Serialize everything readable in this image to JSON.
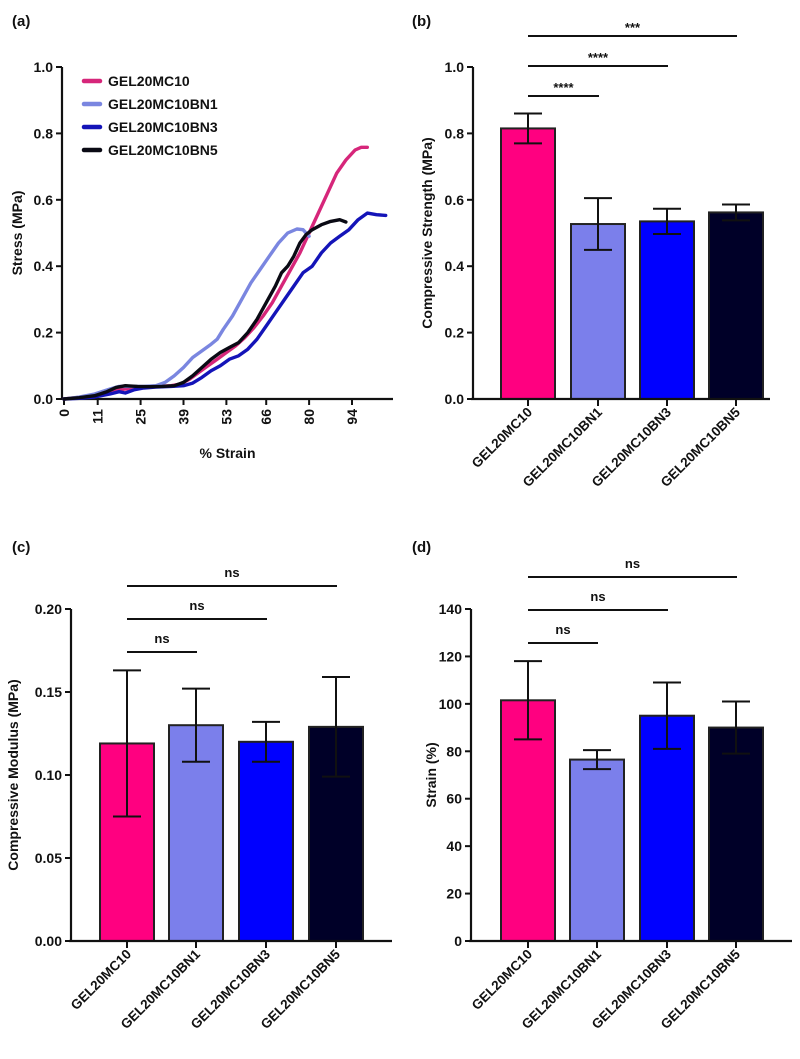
{
  "figure": {
    "panel_labels": [
      "(a)",
      "(b)",
      "(c)",
      "(d)"
    ]
  },
  "chart_data": [
    {
      "id": "a",
      "type": "line",
      "title": "",
      "panel_label": "(a)",
      "xlabel": "% Strain",
      "ylabel": "Stress (MPa)",
      "xlim": [
        0,
        108
      ],
      "ylim": [
        0,
        1.0
      ],
      "xticks": [
        0,
        11,
        25,
        39,
        53,
        66,
        80,
        94
      ],
      "xtick_labels": [
        "0",
        "11",
        "25",
        "39",
        "53",
        "66",
        "80",
        "94"
      ],
      "yticks": [
        0.0,
        0.2,
        0.4,
        0.6,
        0.8,
        1.0
      ],
      "ytick_labels": [
        "0.0",
        "0.2",
        "0.4",
        "0.6",
        "0.8",
        "1.0"
      ],
      "legend_position": "top-left",
      "grid": false,
      "series": [
        {
          "name": "GEL20MC10",
          "color": "#D6267A",
          "points": [
            [
              0,
              0
            ],
            [
              5,
              0.005
            ],
            [
              10,
              0.012
            ],
            [
              15,
              0.022
            ],
            [
              20,
              0.03
            ],
            [
              25,
              0.035
            ],
            [
              30,
              0.038
            ],
            [
              35,
              0.04
            ],
            [
              38,
              0.045
            ],
            [
              41,
              0.06
            ],
            [
              44,
              0.08
            ],
            [
              47,
              0.1
            ],
            [
              50,
              0.12
            ],
            [
              53,
              0.14
            ],
            [
              56,
              0.16
            ],
            [
              59,
              0.185
            ],
            [
              62,
              0.215
            ],
            [
              65,
              0.25
            ],
            [
              68,
              0.29
            ],
            [
              71,
              0.34
            ],
            [
              74,
              0.39
            ],
            [
              77,
              0.44
            ],
            [
              80,
              0.5
            ],
            [
              83,
              0.56
            ],
            [
              86,
              0.62
            ],
            [
              89,
              0.68
            ],
            [
              92,
              0.72
            ],
            [
              95,
              0.75
            ],
            [
              97,
              0.758
            ],
            [
              99,
              0.758
            ]
          ]
        },
        {
          "name": "GEL20MC10BN1",
          "color": "#7A86E0",
          "points": [
            [
              0,
              0
            ],
            [
              5,
              0.006
            ],
            [
              10,
              0.015
            ],
            [
              15,
              0.03
            ],
            [
              18,
              0.038
            ],
            [
              22,
              0.038
            ],
            [
              26,
              0.038
            ],
            [
              30,
              0.04
            ],
            [
              33,
              0.05
            ],
            [
              36,
              0.07
            ],
            [
              39,
              0.095
            ],
            [
              42,
              0.125
            ],
            [
              45,
              0.145
            ],
            [
              48,
              0.165
            ],
            [
              50,
              0.18
            ],
            [
              52,
              0.21
            ],
            [
              55,
              0.25
            ],
            [
              58,
              0.3
            ],
            [
              61,
              0.35
            ],
            [
              64,
              0.39
            ],
            [
              67,
              0.43
            ],
            [
              70,
              0.47
            ],
            [
              73,
              0.5
            ],
            [
              76,
              0.512
            ],
            [
              78,
              0.51
            ],
            [
              80,
              0.49
            ]
          ]
        },
        {
          "name": "GEL20MC10BN3",
          "color": "#1414B8",
          "points": [
            [
              0,
              0
            ],
            [
              5,
              0.002
            ],
            [
              10,
              0.006
            ],
            [
              15,
              0.015
            ],
            [
              18,
              0.022
            ],
            [
              20,
              0.018
            ],
            [
              23,
              0.028
            ],
            [
              26,
              0.033
            ],
            [
              30,
              0.036
            ],
            [
              35,
              0.038
            ],
            [
              39,
              0.04
            ],
            [
              42,
              0.048
            ],
            [
              45,
              0.065
            ],
            [
              48,
              0.085
            ],
            [
              51,
              0.1
            ],
            [
              54,
              0.12
            ],
            [
              57,
              0.13
            ],
            [
              60,
              0.15
            ],
            [
              63,
              0.18
            ],
            [
              66,
              0.22
            ],
            [
              69,
              0.26
            ],
            [
              72,
              0.3
            ],
            [
              75,
              0.34
            ],
            [
              78,
              0.38
            ],
            [
              81,
              0.4
            ],
            [
              84,
              0.44
            ],
            [
              87,
              0.47
            ],
            [
              90,
              0.49
            ],
            [
              93,
              0.51
            ],
            [
              96,
              0.54
            ],
            [
              99,
              0.56
            ],
            [
              102,
              0.555
            ],
            [
              105,
              0.553
            ]
          ]
        },
        {
          "name": "GEL20MC10BN5",
          "color": "#0A0A14",
          "points": [
            [
              0,
              0
            ],
            [
              5,
              0.004
            ],
            [
              10,
              0.01
            ],
            [
              14,
              0.022
            ],
            [
              17,
              0.035
            ],
            [
              20,
              0.04
            ],
            [
              24,
              0.038
            ],
            [
              28,
              0.037
            ],
            [
              32,
              0.038
            ],
            [
              36,
              0.04
            ],
            [
              39,
              0.05
            ],
            [
              42,
              0.07
            ],
            [
              45,
              0.095
            ],
            [
              48,
              0.12
            ],
            [
              51,
              0.14
            ],
            [
              54,
              0.155
            ],
            [
              57,
              0.17
            ],
            [
              60,
              0.2
            ],
            [
              63,
              0.24
            ],
            [
              66,
              0.29
            ],
            [
              69,
              0.34
            ],
            [
              71,
              0.38
            ],
            [
              73,
              0.4
            ],
            [
              75,
              0.43
            ],
            [
              77,
              0.47
            ],
            [
              79,
              0.495
            ],
            [
              81,
              0.51
            ],
            [
              84,
              0.525
            ],
            [
              87,
              0.535
            ],
            [
              90,
              0.54
            ],
            [
              92,
              0.533
            ]
          ]
        }
      ]
    },
    {
      "id": "b",
      "type": "bar",
      "panel_label": "(b)",
      "title": "",
      "xlabel": "",
      "ylabel": "Compressive Strength (MPa)",
      "ylim": [
        0,
        1.0
      ],
      "yticks": [
        0.0,
        0.2,
        0.4,
        0.6,
        0.8,
        1.0
      ],
      "ytick_labels": [
        "0.0",
        "0.2",
        "0.4",
        "0.6",
        "0.8",
        "1.0"
      ],
      "categories": [
        "GEL20MC10",
        "GEL20MC10BN1",
        "GEL20MC10BN3",
        "GEL20MC10BN5"
      ],
      "colors": [
        "#FF0080",
        "#7B7FEB",
        "#0000FF",
        "#000028"
      ],
      "values": [
        0.815,
        0.527,
        0.535,
        0.562
      ],
      "errors": [
        0.045,
        0.078,
        0.038,
        0.024
      ],
      "significance": [
        {
          "from": 0,
          "to": 1,
          "label": "****",
          "level": 1
        },
        {
          "from": 0,
          "to": 2,
          "label": "****",
          "level": 2
        },
        {
          "from": 0,
          "to": 3,
          "label": "***",
          "level": 3
        }
      ]
    },
    {
      "id": "c",
      "type": "bar",
      "panel_label": "(c)",
      "title": "",
      "xlabel": "",
      "ylabel": "Compressive Modulus (MPa)",
      "ylim": [
        0,
        0.2
      ],
      "yticks": [
        0.0,
        0.05,
        0.1,
        0.15,
        0.2
      ],
      "ytick_labels": [
        "0.00",
        "0.05",
        "0.10",
        "0.15",
        "0.20"
      ],
      "categories": [
        "GEL20MC10",
        "GEL20MC10BN1",
        "GEL20MC10BN3",
        "GEL20MC10BN5"
      ],
      "colors": [
        "#FF0080",
        "#7B7FEB",
        "#0000FF",
        "#000028"
      ],
      "values": [
        0.119,
        0.13,
        0.12,
        0.129
      ],
      "errors": [
        0.044,
        0.022,
        0.012,
        0.03
      ],
      "significance": [
        {
          "from": 0,
          "to": 1,
          "label": "ns",
          "level": 1
        },
        {
          "from": 0,
          "to": 2,
          "label": "ns",
          "level": 2
        },
        {
          "from": 0,
          "to": 3,
          "label": "ns",
          "level": 3
        }
      ]
    },
    {
      "id": "d",
      "type": "bar",
      "panel_label": "(d)",
      "title": "",
      "xlabel": "",
      "ylabel": "Strain (%)",
      "ylim": [
        0,
        140
      ],
      "yticks": [
        0,
        20,
        40,
        60,
        80,
        100,
        120,
        140
      ],
      "ytick_labels": [
        "0",
        "20",
        "40",
        "60",
        "80",
        "100",
        "120",
        "140"
      ],
      "categories": [
        "GEL20MC10",
        "GEL20MC10BN1",
        "GEL20MC10BN3",
        "GEL20MC10BN5"
      ],
      "colors": [
        "#FF0080",
        "#7B7FEB",
        "#0000FF",
        "#000028"
      ],
      "values": [
        101.5,
        76.5,
        95,
        90
      ],
      "errors": [
        16.5,
        4,
        14,
        11
      ],
      "significance": [
        {
          "from": 0,
          "to": 1,
          "label": "ns",
          "level": 1
        },
        {
          "from": 0,
          "to": 2,
          "label": "ns",
          "level": 2
        },
        {
          "from": 0,
          "to": 3,
          "label": "ns",
          "level": 3
        }
      ]
    }
  ]
}
